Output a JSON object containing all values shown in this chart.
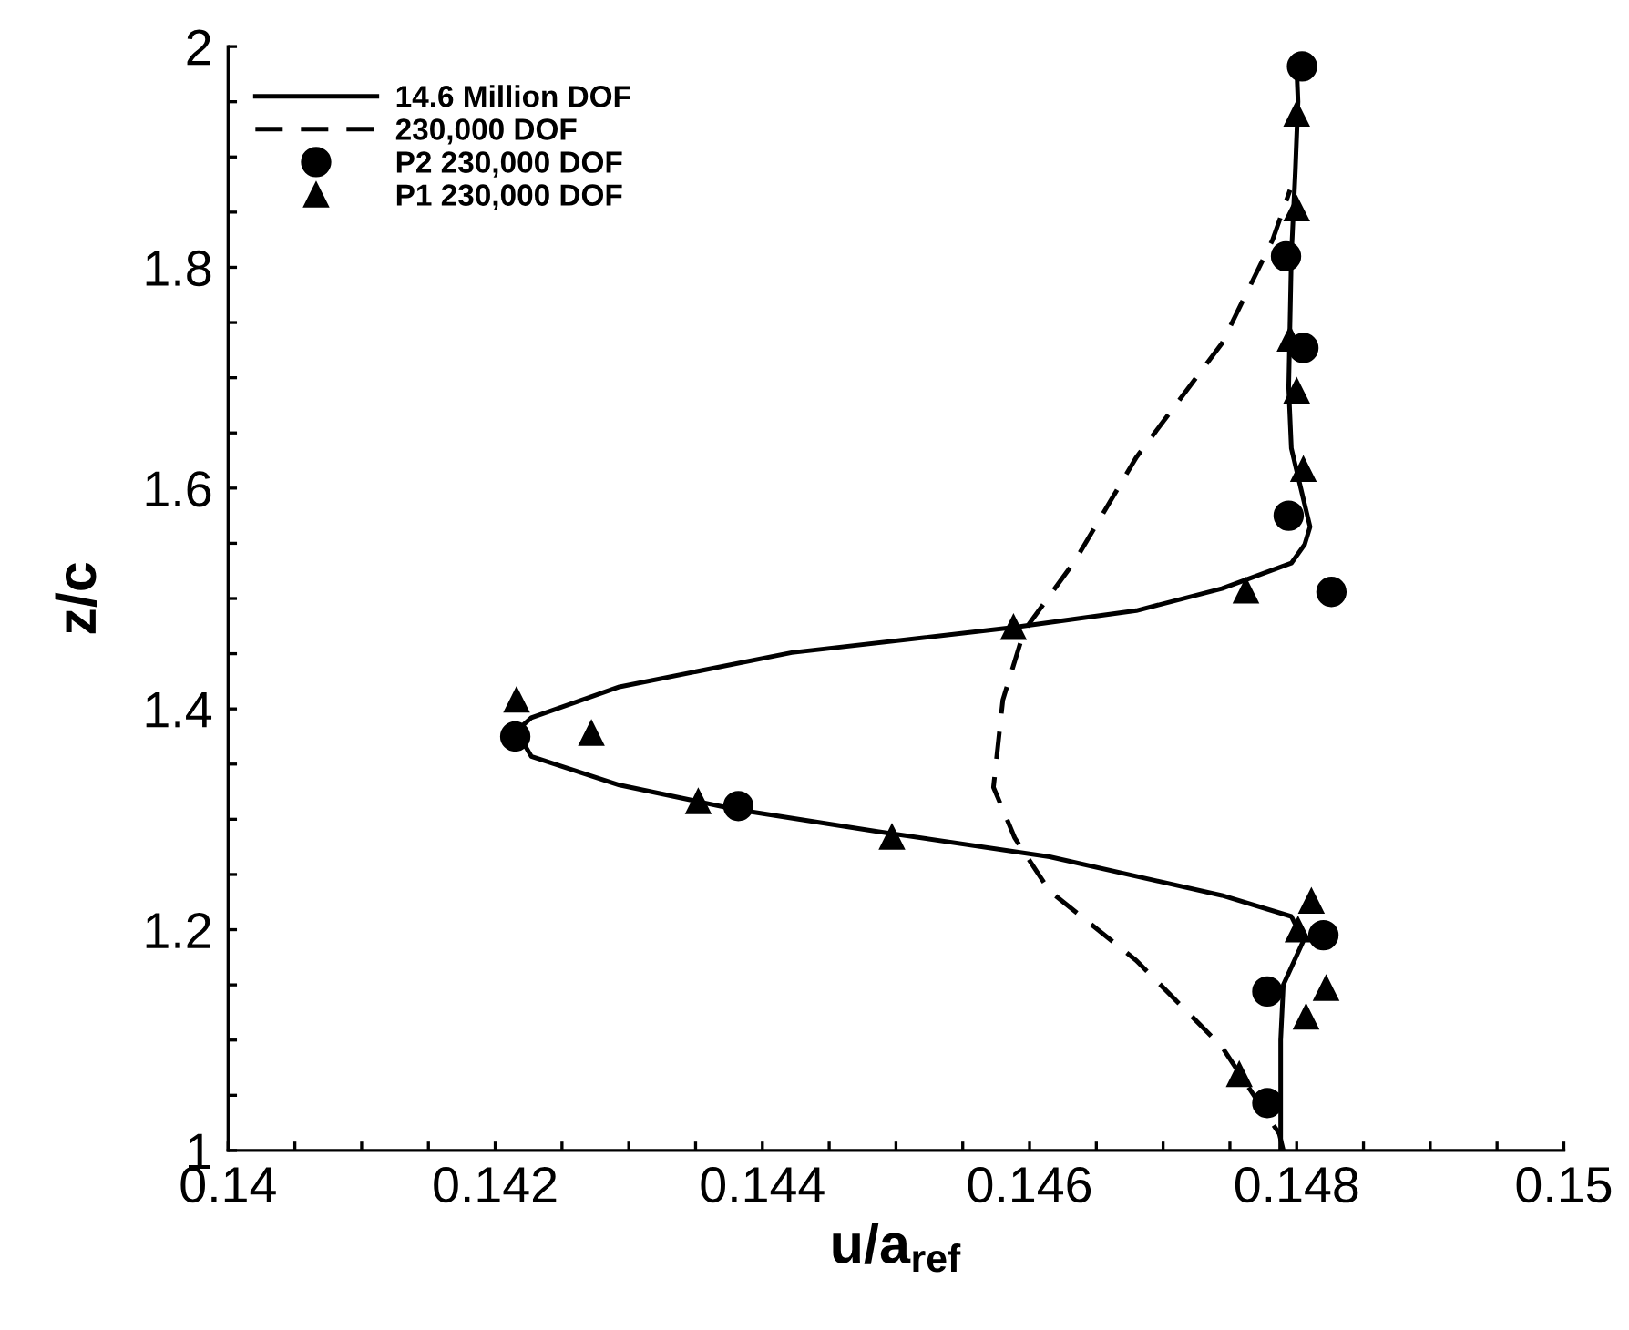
{
  "chart_data": {
    "type": "line",
    "xlabel": "u/a$_{ref}$",
    "ylabel": "z/c",
    "xlim": [
      0.14,
      0.15
    ],
    "ylim": [
      1,
      2
    ],
    "xticks": [
      0.14,
      {
        "value": 0.1405,
        "label": null
      },
      {
        "value": 0.141,
        "label": null
      },
      {
        "value": 0.1415,
        "label": null
      },
      0.142,
      {
        "value": 0.1425,
        "label": null
      },
      {
        "value": 0.143,
        "label": null
      },
      {
        "value": 0.1435,
        "label": null
      },
      0.144,
      {
        "value": 0.1445,
        "label": null
      },
      {
        "value": 0.145,
        "label": null
      },
      {
        "value": 0.1455,
        "label": null
      },
      0.146,
      {
        "value": 0.1465,
        "label": null
      },
      {
        "value": 0.147,
        "label": null
      },
      {
        "value": 0.1475,
        "label": null
      },
      0.148,
      {
        "value": 0.1485,
        "label": null
      },
      {
        "value": 0.149,
        "label": null
      },
      {
        "value": 0.1495,
        "label": null
      },
      0.15
    ],
    "yticks": [
      1,
      {
        "value": 1.05,
        "label": null
      },
      {
        "value": 1.1,
        "label": null
      },
      {
        "value": 1.15,
        "label": null
      },
      1.2,
      {
        "value": 1.25,
        "label": null
      },
      {
        "value": 1.3,
        "label": null
      },
      {
        "value": 1.35,
        "label": null
      },
      1.4,
      {
        "value": 1.45,
        "label": null
      },
      {
        "value": 1.5,
        "label": null
      },
      {
        "value": 1.55,
        "label": null
      },
      1.6,
      {
        "value": 1.65,
        "label": null
      },
      {
        "value": 1.7,
        "label": null
      },
      {
        "value": 1.75,
        "label": null
      },
      1.8,
      {
        "value": 1.85,
        "label": null
      },
      {
        "value": 1.9,
        "label": null
      },
      {
        "value": 1.95,
        "label": null
      },
      2
    ],
    "grid": false,
    "legend": "top left",
    "series": [
      {
        "name": "14.6 Million DOF",
        "line_style": "solid",
        "marker": "none",
        "color": "#000000",
        "x": [
          0.14788,
          0.14788,
          0.1479,
          0.14805,
          0.14796,
          0.14744,
          0.14615,
          0.14486,
          0.1438,
          0.14293,
          0.14227,
          0.14216,
          0.14227,
          0.14293,
          0.14422,
          0.14589,
          0.1468,
          0.14744,
          0.14796,
          0.14806,
          0.1481,
          0.14805,
          0.14796,
          0.14794,
          0.14796,
          0.14799,
          0.14801,
          0.148
        ],
        "values": [
          1.0,
          1.1,
          1.15,
          1.19,
          1.212,
          1.231,
          1.266,
          1.289,
          1.309,
          1.331,
          1.357,
          1.38,
          1.392,
          1.42,
          1.451,
          1.474,
          1.489,
          1.509,
          1.532,
          1.549,
          1.565,
          1.59,
          1.636,
          1.691,
          1.81,
          1.888,
          1.95,
          1.98
        ]
      },
      {
        "name": "230,000 DOF",
        "line_style": "dashed",
        "marker": "none",
        "color": "#000000",
        "x": [
          0.1479,
          0.14787,
          0.14744,
          0.1468,
          0.14615,
          0.14589,
          0.14573,
          0.1458,
          0.14596,
          0.14634,
          0.1468,
          0.14744,
          0.14782,
          0.14795
        ],
        "values": [
          1.0,
          1.015,
          1.094,
          1.172,
          1.235,
          1.283,
          1.329,
          1.408,
          1.471,
          1.534,
          1.628,
          1.731,
          1.825,
          1.87
        ]
      },
      {
        "name": "P2 230,000 DOF",
        "type": "scatter",
        "marker": "circle",
        "color": "#000000",
        "x": [
          0.14804,
          0.14792,
          0.14805,
          0.14794,
          0.14826,
          0.14215,
          0.14382,
          0.1482,
          0.14778,
          0.14778
        ],
        "values": [
          1.982,
          1.81,
          1.727,
          1.575,
          1.506,
          1.375,
          1.312,
          1.195,
          1.144,
          1.043
        ]
      },
      {
        "name": "P1 230,000 DOF",
        "type": "scatter",
        "marker": "triangle",
        "color": "#000000",
        "x": [
          0.148,
          0.148,
          0.14795,
          0.148,
          0.14805,
          0.14762,
          0.14588,
          0.14216,
          0.14272,
          0.14352,
          0.14497,
          0.14811,
          0.14801,
          0.14822,
          0.14807,
          0.14757
        ],
        "values": [
          1.939,
          1.853,
          1.735,
          1.688,
          1.617,
          1.507,
          1.474,
          1.408,
          1.378,
          1.316,
          1.284,
          1.226,
          1.2,
          1.147,
          1.121,
          1.069
        ]
      }
    ]
  }
}
